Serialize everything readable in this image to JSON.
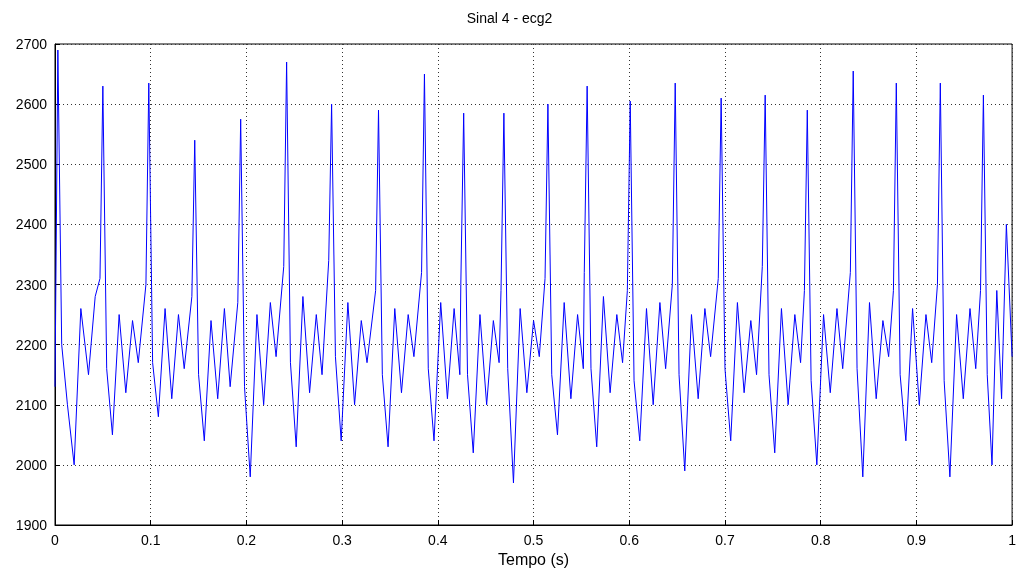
{
  "chart_data": {
    "type": "line",
    "title": "Sinal 4 - ecg2",
    "xlabel": "Tempo (s)",
    "x": [
      0,
      0.003,
      0.007,
      0.013,
      0.02,
      0.027,
      0.035,
      0.042,
      0.047,
      0.05,
      0.054,
      0.06,
      0.067,
      0.074,
      0.081,
      0.087,
      0.095,
      0.098,
      0.102,
      0.108,
      0.115,
      0.122,
      0.129,
      0.135,
      0.143,
      0.146,
      0.15,
      0.156,
      0.163,
      0.17,
      0.177,
      0.183,
      0.191,
      0.194,
      0.198,
      0.204,
      0.211,
      0.218,
      0.225,
      0.231,
      0.239,
      0.242,
      0.246,
      0.252,
      0.259,
      0.266,
      0.273,
      0.279,
      0.286,
      0.289,
      0.293,
      0.299,
      0.306,
      0.313,
      0.32,
      0.326,
      0.335,
      0.338,
      0.342,
      0.348,
      0.355,
      0.362,
      0.369,
      0.375,
      0.383,
      0.386,
      0.39,
      0.396,
      0.403,
      0.41,
      0.417,
      0.423,
      0.424,
      0.427,
      0.431,
      0.437,
      0.444,
      0.451,
      0.458,
      0.464,
      0.466,
      0.469,
      0.473,
      0.479,
      0.486,
      0.493,
      0.5,
      0.506,
      0.512,
      0.515,
      0.519,
      0.525,
      0.532,
      0.539,
      0.546,
      0.552,
      0.553,
      0.556,
      0.56,
      0.566,
      0.573,
      0.58,
      0.587,
      0.593,
      0.598,
      0.601,
      0.605,
      0.611,
      0.618,
      0.625,
      0.632,
      0.638,
      0.645,
      0.648,
      0.652,
      0.658,
      0.665,
      0.672,
      0.679,
      0.685,
      0.693,
      0.696,
      0.7,
      0.706,
      0.713,
      0.72,
      0.727,
      0.733,
      0.739,
      0.742,
      0.746,
      0.752,
      0.759,
      0.766,
      0.773,
      0.779,
      0.783,
      0.786,
      0.79,
      0.796,
      0.803,
      0.81,
      0.817,
      0.823,
      0.831,
      0.834,
      0.838,
      0.844,
      0.851,
      0.858,
      0.865,
      0.871,
      0.876,
      0.879,
      0.883,
      0.889,
      0.896,
      0.903,
      0.91,
      0.916,
      0.922,
      0.925,
      0.929,
      0.935,
      0.942,
      0.949,
      0.956,
      0.962,
      0.967,
      0.97,
      0.974,
      0.979,
      0.984,
      0.989,
      0.994,
      1
    ],
    "series": [
      {
        "color": "#0000ff",
        "values": [
          2130,
          2690,
          2200,
          2100,
          2000,
          2260,
          2150,
          2280,
          2310,
          2630,
          2160,
          2050,
          2250,
          2120,
          2240,
          2170,
          2300,
          2635,
          2170,
          2080,
          2260,
          2110,
          2250,
          2160,
          2280,
          2540,
          2150,
          2040,
          2240,
          2110,
          2260,
          2130,
          2270,
          2575,
          2130,
          1980,
          2250,
          2100,
          2270,
          2180,
          2330,
          2670,
          2170,
          2030,
          2280,
          2120,
          2250,
          2150,
          2340,
          2600,
          2180,
          2040,
          2270,
          2100,
          2240,
          2170,
          2290,
          2590,
          2150,
          2030,
          2260,
          2120,
          2250,
          2180,
          2320,
          2650,
          2160,
          2040,
          2270,
          2110,
          2260,
          2150,
          2300,
          2585,
          2150,
          2020,
          2250,
          2100,
          2240,
          2170,
          2290,
          2585,
          2160,
          1970,
          2260,
          2120,
          2240,
          2180,
          2310,
          2600,
          2150,
          2050,
          2270,
          2110,
          2250,
          2160,
          2320,
          2630,
          2160,
          2030,
          2280,
          2120,
          2250,
          2170,
          2290,
          2605,
          2140,
          2040,
          2260,
          2100,
          2270,
          2160,
          2300,
          2635,
          2150,
          1990,
          2250,
          2110,
          2260,
          2180,
          2310,
          2610,
          2160,
          2040,
          2270,
          2120,
          2240,
          2150,
          2330,
          2615,
          2150,
          2020,
          2260,
          2100,
          2250,
          2170,
          2290,
          2590,
          2140,
          2000,
          2250,
          2120,
          2260,
          2160,
          2320,
          2655,
          2160,
          1980,
          2270,
          2110,
          2240,
          2180,
          2290,
          2635,
          2150,
          2040,
          2260,
          2100,
          2250,
          2170,
          2300,
          2635,
          2140,
          1980,
          2250,
          2110,
          2260,
          2160,
          2290,
          2615,
          2150,
          2000,
          2290,
          2110,
          2400,
          2180
        ]
      }
    ],
    "xlim": [
      0,
      1
    ],
    "xticks": [
      0,
      0.1,
      0.2,
      0.3,
      0.4,
      0.5,
      0.6,
      0.7,
      0.8,
      0.9,
      1
    ],
    "ylim": [
      1900,
      2700
    ],
    "yticks": [
      1900,
      2000,
      2100,
      2200,
      2300,
      2400,
      2500,
      2600,
      2700
    ],
    "grid": true,
    "marker": "none",
    "line_style": "solid"
  }
}
